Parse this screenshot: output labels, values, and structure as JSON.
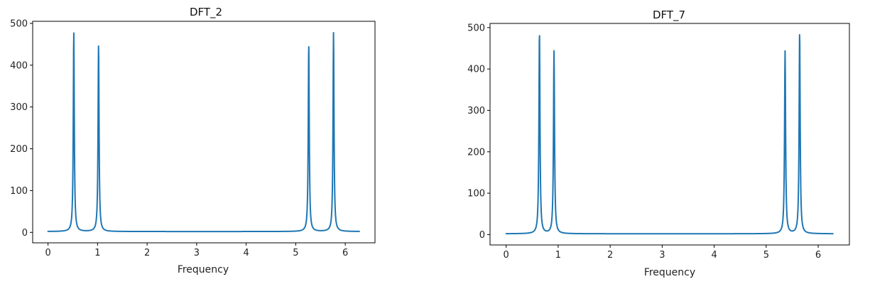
{
  "chart_data": [
    {
      "type": "line",
      "title": "DFT_2",
      "xlabel": "Frequency",
      "ylabel": "",
      "xlim": [
        -0.31,
        6.6
      ],
      "ylim": [
        -25,
        505
      ],
      "xticks": [
        "0",
        "1",
        "2",
        "3",
        "4",
        "5",
        "6"
      ],
      "yticks": [
        "0",
        "100",
        "200",
        "300",
        "400",
        "500"
      ],
      "grid": false,
      "color": "#1f77b4",
      "x_range": [
        0,
        6.2832
      ],
      "baseline": 2,
      "peaks": [
        {
          "x": 0.52,
          "y": 478
        },
        {
          "x": 1.02,
          "y": 450
        },
        {
          "x": 5.263,
          "y": 450
        },
        {
          "x": 5.763,
          "y": 478
        }
      ]
    },
    {
      "type": "line",
      "title": "DFT_7",
      "xlabel": "Frequency",
      "ylabel": "",
      "xlim": [
        -0.31,
        6.6
      ],
      "ylim": [
        -25,
        510
      ],
      "xticks": [
        "0",
        "1",
        "2",
        "3",
        "4",
        "5",
        "6"
      ],
      "yticks": [
        "0",
        "100",
        "200",
        "300",
        "400",
        "500"
      ],
      "grid": false,
      "color": "#1f77b4",
      "x_range": [
        0,
        6.2832
      ],
      "baseline": 2,
      "peaks": [
        {
          "x": 0.64,
          "y": 490
        },
        {
          "x": 0.92,
          "y": 443
        },
        {
          "x": 5.363,
          "y": 443
        },
        {
          "x": 5.643,
          "y": 490
        }
      ]
    }
  ]
}
